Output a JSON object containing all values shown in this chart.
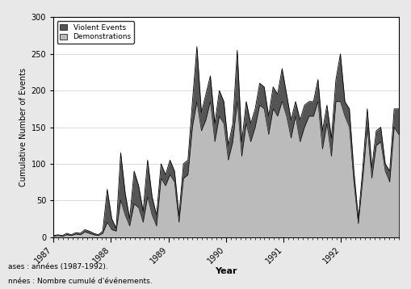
{
  "title": "",
  "xlabel": "Year",
  "ylabel": "Cumulative Number of Events",
  "ylim": [
    0,
    300
  ],
  "yticks": [
    0,
    50,
    100,
    150,
    200,
    250,
    300
  ],
  "background_color": "#e8e8e8",
  "plot_bg_color": "#ffffff",
  "legend_labels": [
    "Violent Events",
    "Demonstrations"
  ],
  "violent_color": "#555555",
  "demo_color": "#bbbbbb",
  "violent_events": [
    2,
    3,
    2,
    5,
    3,
    6,
    5,
    10,
    8,
    5,
    3,
    8,
    65,
    25,
    12,
    115,
    60,
    25,
    90,
    70,
    35,
    105,
    55,
    30,
    100,
    85,
    105,
    90,
    30,
    100,
    105,
    185,
    260,
    170,
    195,
    220,
    155,
    200,
    185,
    125,
    155,
    255,
    130,
    185,
    155,
    175,
    210,
    205,
    165,
    205,
    195,
    230,
    195,
    160,
    185,
    160,
    180,
    185,
    185,
    215,
    145,
    180,
    135,
    215,
    250,
    185,
    175,
    90,
    25,
    95,
    175,
    95,
    145,
    150,
    100,
    90,
    175,
    175
  ],
  "demonstrations": [
    1,
    2,
    1,
    3,
    2,
    4,
    3,
    7,
    5,
    3,
    2,
    5,
    20,
    10,
    8,
    50,
    30,
    15,
    45,
    40,
    20,
    55,
    30,
    15,
    80,
    70,
    85,
    75,
    20,
    80,
    85,
    150,
    185,
    145,
    160,
    185,
    130,
    165,
    155,
    105,
    130,
    185,
    110,
    155,
    130,
    150,
    180,
    175,
    140,
    175,
    165,
    185,
    165,
    135,
    165,
    130,
    150,
    165,
    165,
    185,
    120,
    155,
    110,
    185,
    185,
    165,
    150,
    75,
    18,
    80,
    150,
    80,
    125,
    130,
    90,
    75,
    150,
    140
  ],
  "footnote1": "ases : années (1987-1992).",
  "footnote2": "nnées : Nombre cumulé d'événements."
}
